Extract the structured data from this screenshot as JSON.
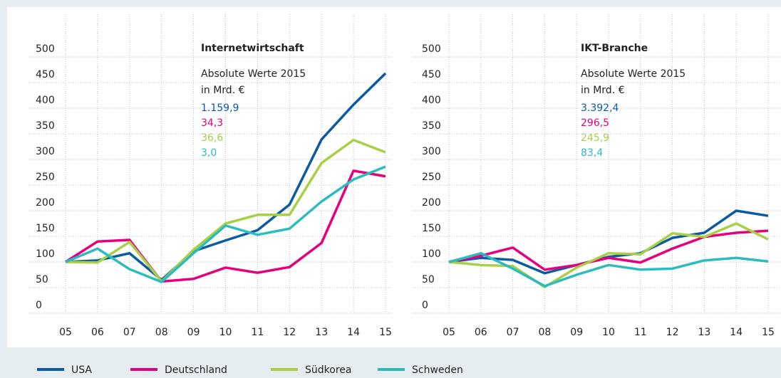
{
  "chart_data": [
    {
      "type": "line",
      "title": "Internetwirtschaft",
      "annotations": [
        "Absolute Werte 2015",
        "in Mrd. €"
      ],
      "categories": [
        "05",
        "06",
        "07",
        "08",
        "09",
        "10",
        "11",
        "12",
        "13",
        "14",
        "15"
      ],
      "ylim": [
        0,
        500
      ],
      "yticks": [
        0,
        50,
        100,
        150,
        200,
        250,
        300,
        350,
        400,
        450,
        500
      ],
      "grid": true,
      "series": [
        {
          "name": "USA",
          "color": "#0b5aa3",
          "label": "1.159,9",
          "values": [
            100,
            103,
            117,
            65,
            121,
            142,
            162,
            212,
            339,
            407,
            468
          ]
        },
        {
          "name": "Deutschland",
          "color": "#e6007e",
          "label": "34,3",
          "values": [
            100,
            140,
            143,
            62,
            67,
            89,
            79,
            90,
            137,
            278,
            267
          ]
        },
        {
          "name": "Südkorea",
          "color": "#a8cf45",
          "label": "36,6",
          "values": [
            100,
            99,
            139,
            62,
            124,
            175,
            192,
            192,
            293,
            338,
            314
          ]
        },
        {
          "name": "Schweden",
          "color": "#2bbcc0",
          "label": "3,0",
          "values": [
            100,
            126,
            86,
            61,
            117,
            171,
            153,
            165,
            218,
            261,
            286
          ]
        }
      ]
    },
    {
      "type": "line",
      "title": "IKT-Branche",
      "annotations": [
        "Absolute Werte 2015",
        "in Mrd. €"
      ],
      "categories": [
        "05",
        "06",
        "07",
        "08",
        "09",
        "10",
        "11",
        "12",
        "13",
        "14",
        "15"
      ],
      "ylim": [
        0,
        500
      ],
      "yticks": [
        0,
        50,
        100,
        150,
        200,
        250,
        300,
        350,
        400,
        450,
        500
      ],
      "grid": true,
      "series": [
        {
          "color": "#0b5aa3",
          "label": "3.392,4",
          "values": [
            100,
            108,
            104,
            78,
            94,
            110,
            117,
            147,
            157,
            200,
            190
          ]
        },
        {
          "color": "#e6007e",
          "label": "296,5",
          "values": [
            100,
            112,
            128,
            85,
            94,
            108,
            99,
            126,
            149,
            157,
            161
          ]
        },
        {
          "color": "#a8cf45",
          "label": "245,9",
          "values": [
            100,
            94,
            92,
            51,
            89,
            117,
            115,
            156,
            149,
            175,
            144
          ]
        },
        {
          "color": "#2bbcc0",
          "label": "83,4",
          "values": [
            100,
            117,
            87,
            53,
            75,
            94,
            85,
            87,
            103,
            108,
            101
          ]
        }
      ]
    }
  ]
}
